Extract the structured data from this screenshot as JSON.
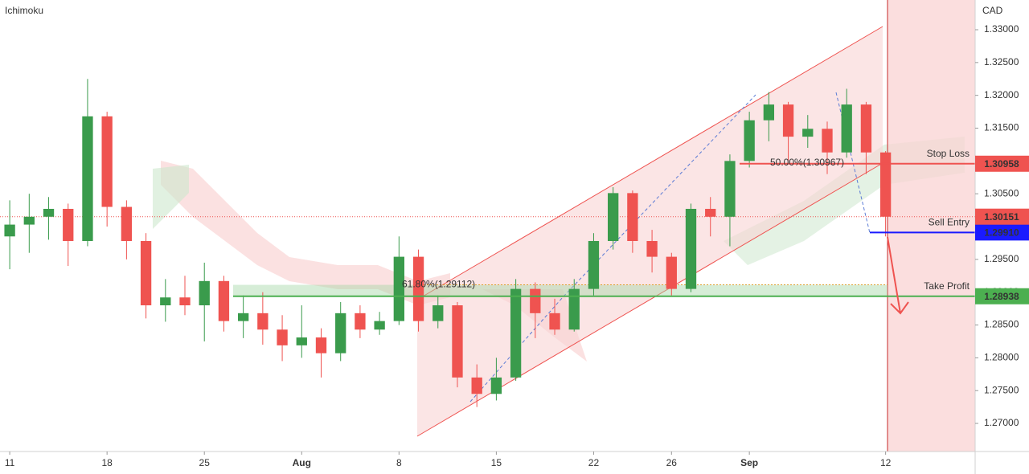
{
  "chart_data": {
    "type": "candlestick",
    "indicator": "Ichimoku",
    "currency": "CAD",
    "x": [
      0,
      1,
      2,
      3,
      4,
      5,
      6,
      7,
      8,
      9,
      10,
      11,
      12,
      13,
      14,
      15,
      16,
      17,
      18,
      19,
      20,
      21,
      22,
      23,
      24,
      25,
      26,
      27,
      28,
      29,
      30,
      31,
      32,
      33,
      34,
      35,
      36,
      37,
      38,
      39,
      40,
      41,
      42,
      43,
      44,
      45
    ],
    "open": [
      1.2985,
      1.3003,
      1.3015,
      1.3027,
      1.2978,
      1.3168,
      1.303,
      1.2978,
      1.288,
      1.2892,
      1.288,
      1.2917,
      1.2856,
      1.2868,
      1.2843,
      1.2819,
      1.2831,
      1.2807,
      1.2868,
      1.2843,
      1.2856,
      1.2954,
      1.2856,
      1.288,
      1.277,
      1.2745,
      1.277,
      1.2905,
      1.2868,
      1.2843,
      1.2905,
      1.2978,
      1.3051,
      1.2978,
      1.2954,
      1.2905,
      1.3027,
      1.3015,
      1.31,
      1.3162,
      1.3186,
      1.3137,
      1.3149,
      1.3113,
      1.3186,
      1.3113
    ],
    "high": [
      1.304,
      1.305,
      1.3045,
      1.3035,
      1.3225,
      1.3175,
      1.304,
      1.299,
      1.292,
      1.2925,
      1.2945,
      1.2925,
      1.2895,
      1.29,
      1.2865,
      1.288,
      1.2845,
      1.2885,
      1.288,
      1.287,
      1.2985,
      1.2965,
      1.2895,
      1.2885,
      1.279,
      1.28,
      1.292,
      1.2915,
      1.289,
      1.292,
      1.299,
      1.306,
      1.3055,
      1.2995,
      1.296,
      1.3035,
      1.3045,
      1.311,
      1.3175,
      1.3205,
      1.319,
      1.317,
      1.316,
      1.321,
      1.319,
      1.3115
    ],
    "low": [
      1.2935,
      1.296,
      1.298,
      1.294,
      1.297,
      1.3,
      1.295,
      1.286,
      1.2855,
      1.2865,
      1.2825,
      1.284,
      1.283,
      1.282,
      1.2795,
      1.28,
      1.277,
      1.2795,
      1.283,
      1.2835,
      1.285,
      1.284,
      1.2845,
      1.2755,
      1.2725,
      1.2735,
      1.2765,
      1.283,
      1.2835,
      1.284,
      1.2895,
      1.2965,
      1.296,
      1.293,
      1.2895,
      1.29,
      1.2985,
      1.297,
      1.309,
      1.313,
      1.31,
      1.312,
      1.308,
      1.3105,
      1.308,
      1.2985
    ],
    "close": [
      1.3003,
      1.3015,
      1.3027,
      1.2978,
      1.3168,
      1.303,
      1.2978,
      1.288,
      1.2892,
      1.288,
      1.2917,
      1.2856,
      1.2868,
      1.2843,
      1.2819,
      1.2831,
      1.2807,
      1.2868,
      1.2843,
      1.2856,
      1.2954,
      1.2856,
      1.288,
      1.277,
      1.2745,
      1.277,
      1.2905,
      1.2868,
      1.2843,
      1.2905,
      1.2978,
      1.3051,
      1.2978,
      1.2954,
      1.2905,
      1.3027,
      1.3015,
      1.31,
      1.3162,
      1.3186,
      1.3137,
      1.3149,
      1.3113,
      1.3186,
      1.3113,
      1.3015
    ],
    "up_color": "#3a9b4c",
    "down_color": "#ef5350",
    "xlim": [
      -0.5,
      49.6
    ],
    "xticks": [
      {
        "value": 0,
        "label": "11"
      },
      {
        "value": 5,
        "label": "18"
      },
      {
        "value": 10,
        "label": "25"
      },
      {
        "value": 15,
        "label": "Aug"
      },
      {
        "value": 20,
        "label": "8"
      },
      {
        "value": 25,
        "label": "15"
      },
      {
        "value": 30,
        "label": "22"
      },
      {
        "value": 34,
        "label": "26"
      },
      {
        "value": 38,
        "label": "Sep"
      },
      {
        "value": 45,
        "label": "12"
      }
    ],
    "ylim": [
      1.26572,
      1.33453
    ],
    "yticks": [
      {
        "value": 1.27,
        "label": "1.27000"
      },
      {
        "value": 1.275,
        "label": "1.27500"
      },
      {
        "value": 1.28,
        "label": "1.28000"
      },
      {
        "value": 1.285,
        "label": "1.28500"
      },
      {
        "value": 1.29,
        "label": "1.29000"
      },
      {
        "value": 1.295,
        "label": "1.29500"
      },
      {
        "value": 1.3,
        "label": "1.30000"
      },
      {
        "value": 1.305,
        "label": "1.30500"
      },
      {
        "value": 1.31,
        "label": "1.31000"
      },
      {
        "value": 1.315,
        "label": "1.31500"
      },
      {
        "value": 1.32,
        "label": "1.32000"
      },
      {
        "value": 1.325,
        "label": "1.32500"
      },
      {
        "value": 1.33,
        "label": "1.33000"
      }
    ],
    "levels": [
      {
        "name": "Stop Loss",
        "value": 1.30958,
        "label": "1.30958",
        "color": "#ef5350"
      },
      {
        "name": "Sell Entry",
        "value": 1.2991,
        "label": "1.29910",
        "color": "#1a1aff"
      },
      {
        "name": "Take Profit",
        "value": 1.28938,
        "label": "1.28938",
        "color": "#4caf50"
      }
    ],
    "last_price": {
      "value": 1.30151,
      "label": "1.30151",
      "color": "#ef5350"
    },
    "fib_labels": [
      {
        "value": 1.30967,
        "label": "50.00%(1.30967)",
        "color": "#5b7bd5"
      },
      {
        "value": 1.29112,
        "label": "61.80%(1.29112)",
        "color": "#e0a030"
      }
    ]
  }
}
